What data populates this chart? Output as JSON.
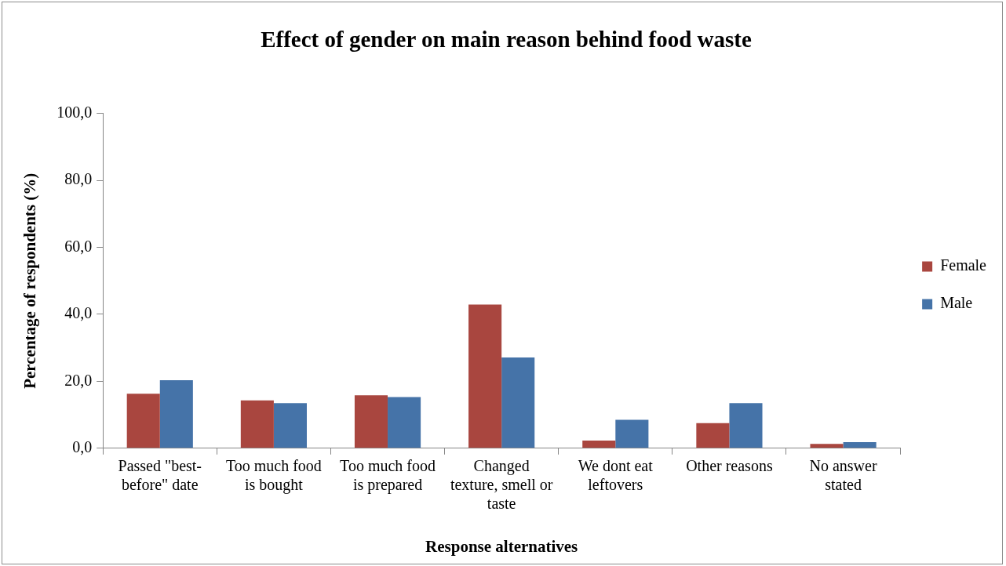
{
  "chart_data": {
    "type": "bar",
    "title": "Effect of gender on main reason behind food waste",
    "xlabel": "Response alternatives",
    "ylabel": "Percentage of respondents (%)",
    "categories": [
      "Passed \"best-before\" date",
      "Too much food is bought",
      "Too much food is prepared",
      "Changed texture, smell or taste",
      "We dont eat leftovers",
      "Other reasons",
      "No answer stated"
    ],
    "series": [
      {
        "name": "Female",
        "color": "#a9463f",
        "values": [
          16.3,
          14.3,
          15.8,
          42.9,
          2.3,
          7.5,
          1.3
        ]
      },
      {
        "name": "Male",
        "color": "#4573a8",
        "values": [
          20.3,
          13.5,
          15.3,
          27.1,
          8.5,
          13.5,
          1.8
        ]
      }
    ],
    "ylim": [
      0,
      100
    ],
    "yticks": [
      {
        "value": 0,
        "label": "0,0"
      },
      {
        "value": 20,
        "label": "20,0"
      },
      {
        "value": 40,
        "label": "40,0"
      },
      {
        "value": 60,
        "label": "60,0"
      },
      {
        "value": 80,
        "label": "80,0"
      },
      {
        "value": 100,
        "label": "100,0"
      }
    ],
    "grid": false,
    "legend": "right"
  }
}
